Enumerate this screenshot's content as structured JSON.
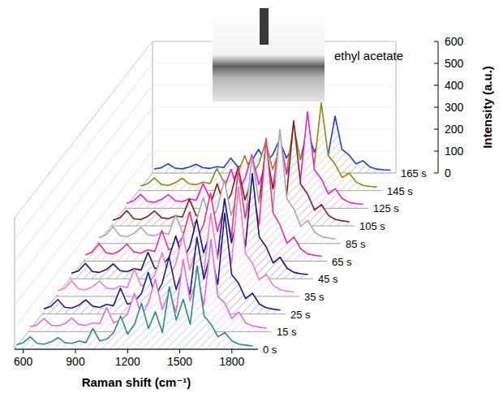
{
  "chart_data": {
    "type": "waterfall",
    "x_label": "Raman shift (cm⁻¹)",
    "y_label": "Intensity (a.u.)",
    "annotations": [
      "ethyl acetate"
    ],
    "xlim": [
      550,
      1950
    ],
    "xticks": [
      600,
      900,
      1200,
      1500,
      1800
    ],
    "ylim": [
      0,
      600
    ],
    "yticks": [
      0,
      100,
      200,
      300,
      400,
      500,
      600
    ],
    "grid": false,
    "x": [
      560,
      600,
      640,
      680,
      720,
      760,
      800,
      840,
      880,
      920,
      960,
      1000,
      1040,
      1080,
      1120,
      1160,
      1200,
      1240,
      1280,
      1320,
      1360,
      1400,
      1440,
      1480,
      1520,
      1560,
      1600,
      1640,
      1680,
      1720,
      1760,
      1800,
      1840,
      1880,
      1920
    ],
    "series": [
      {
        "name": "0 s",
        "color": "#2e8b84",
        "values": [
          20,
          30,
          57,
          27,
          23,
          34,
          53,
          30,
          27,
          38,
          30,
          95,
          38,
          46,
          76,
          152,
          68,
          114,
          209,
          95,
          171,
          76,
          285,
          133,
          228,
          114,
          380,
          152,
          114,
          57,
          76,
          38,
          23,
          19,
          15
        ]
      },
      {
        "name": "15 s",
        "color": "#e070e0",
        "values": [
          22,
          31,
          60,
          30,
          26,
          36,
          62,
          33,
          28,
          40,
          36,
          110,
          40,
          52,
          80,
          175,
          72,
          130,
          240,
          100,
          180,
          88,
          330,
          140,
          250,
          120,
          420,
          160,
          130,
          60,
          90,
          40,
          26,
          20,
          16
        ]
      },
      {
        "name": "25 s",
        "color": "#1c1c8c",
        "values": [
          24,
          35,
          66,
          31,
          27,
          40,
          65,
          36,
          30,
          44,
          38,
          118,
          45,
          55,
          92,
          190,
          80,
          140,
          260,
          112,
          205,
          90,
          350,
          160,
          280,
          135,
          460,
          180,
          140,
          70,
          95,
          45,
          28,
          22,
          18
        ]
      },
      {
        "name": "35 s",
        "color": "#f27fc0",
        "values": [
          25,
          38,
          72,
          34,
          30,
          44,
          70,
          38,
          33,
          48,
          40,
          125,
          48,
          60,
          100,
          200,
          90,
          150,
          280,
          120,
          225,
          100,
          380,
          170,
          300,
          150,
          500,
          195,
          150,
          75,
          100,
          50,
          30,
          24,
          20
        ]
      },
      {
        "name": "45 s",
        "color": "#15157a",
        "values": [
          26,
          36,
          70,
          33,
          29,
          42,
          68,
          37,
          32,
          46,
          40,
          120,
          46,
          58,
          96,
          195,
          86,
          145,
          270,
          118,
          215,
          96,
          365,
          165,
          290,
          145,
          480,
          190,
          145,
          72,
          98,
          48,
          29,
          23,
          19
        ]
      },
      {
        "name": "65 s",
        "color": "#f0308a",
        "values": [
          28,
          42,
          80,
          38,
          33,
          48,
          78,
          42,
          36,
          52,
          44,
          140,
          52,
          66,
          110,
          225,
          100,
          165,
          310,
          135,
          250,
          110,
          420,
          195,
          335,
          165,
          560,
          220,
          165,
          82,
          110,
          55,
          33,
          27,
          22
        ]
      },
      {
        "name": "85 s",
        "color": "#a8a8a8",
        "values": [
          27,
          40,
          76,
          36,
          31,
          46,
          74,
          40,
          35,
          50,
          42,
          132,
          50,
          63,
          105,
          210,
          95,
          158,
          290,
          128,
          235,
          104,
          395,
          182,
          315,
          155,
          520,
          205,
          158,
          78,
          105,
          52,
          31,
          25,
          21
        ]
      },
      {
        "name": "105 s",
        "color": "#8b1a1a",
        "values": [
          25,
          37,
          70,
          33,
          29,
          43,
          68,
          37,
          33,
          46,
          40,
          122,
          46,
          58,
          96,
          192,
          88,
          145,
          268,
          118,
          216,
          96,
          360,
          168,
          290,
          144,
          480,
          190,
          145,
          72,
          97,
          48,
          29,
          23,
          19
        ]
      },
      {
        "name": "125 s",
        "color": "#f020d0",
        "values": [
          23,
          34,
          64,
          31,
          27,
          40,
          62,
          34,
          30,
          43,
          36,
          112,
          43,
          53,
          88,
          178,
          80,
          134,
          245,
          108,
          198,
          88,
          330,
          154,
          265,
          132,
          440,
          175,
          134,
          66,
          89,
          44,
          27,
          21,
          18
        ]
      },
      {
        "name": "145 s",
        "color": "#8a8a10",
        "values": [
          21,
          31,
          58,
          28,
          24,
          36,
          57,
          31,
          27,
          39,
          33,
          100,
          39,
          48,
          80,
          160,
          73,
          120,
          222,
          98,
          180,
          80,
          300,
          140,
          240,
          120,
          400,
          160,
          120,
          60,
          80,
          40,
          24,
          19,
          16
        ]
      },
      {
        "name": "165 s",
        "color": "#1a3fd8",
        "values": [
          18,
          24,
          42,
          22,
          19,
          27,
          40,
          24,
          21,
          29,
          25,
          68,
          29,
          34,
          55,
          108,
          50,
          82,
          150,
          68,
          122,
          56,
          200,
          95,
          165,
          82,
          260,
          108,
          82,
          42,
          56,
          28,
          18,
          15,
          13
        ]
      }
    ]
  }
}
